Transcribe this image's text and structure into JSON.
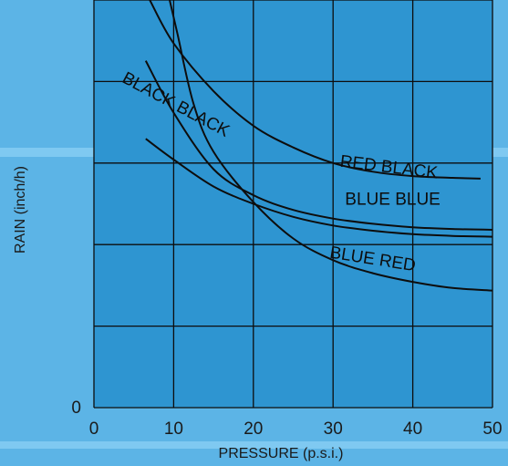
{
  "chart_data": {
    "type": "line",
    "xlabel": "PRESSURE (p.s.i.)",
    "ylabel": "RAIN (inch/h)",
    "xlim": [
      0,
      50
    ],
    "ylim": [
      0,
      4.7
    ],
    "x_ticks": [
      0,
      10,
      20,
      30,
      40,
      50
    ],
    "y_ticks": [
      0
    ],
    "grid": true,
    "series": [
      {
        "name": "RED BLACK",
        "points": [
          [
            7.0,
            4.7
          ],
          [
            10,
            4.2
          ],
          [
            15,
            3.65
          ],
          [
            20,
            3.25
          ],
          [
            25,
            3.0
          ],
          [
            30,
            2.82
          ],
          [
            35,
            2.72
          ],
          [
            40,
            2.67
          ],
          [
            45,
            2.65
          ],
          [
            48.5,
            2.64
          ]
        ]
      },
      {
        "name": "BLUE BLUE",
        "points": [
          [
            6.5,
            4.0
          ],
          [
            10,
            3.4
          ],
          [
            15,
            2.75
          ],
          [
            20,
            2.45
          ],
          [
            25,
            2.28
          ],
          [
            30,
            2.18
          ],
          [
            35,
            2.12
          ],
          [
            40,
            2.08
          ],
          [
            45,
            2.06
          ],
          [
            50,
            2.05
          ]
        ]
      },
      {
        "name": "BLACK BLACK",
        "points": [
          [
            6.5,
            3.1
          ],
          [
            10,
            2.86
          ],
          [
            15,
            2.55
          ],
          [
            20,
            2.35
          ],
          [
            25,
            2.2
          ],
          [
            30,
            2.1
          ],
          [
            35,
            2.04
          ],
          [
            40,
            2.0
          ],
          [
            45,
            1.98
          ],
          [
            50,
            1.97
          ]
        ]
      },
      {
        "name": "BLUE RED",
        "points": [
          [
            9.5,
            4.7
          ],
          [
            10.5,
            4.3
          ],
          [
            12.5,
            3.5
          ],
          [
            15,
            2.95
          ],
          [
            20,
            2.37
          ],
          [
            25,
            1.95
          ],
          [
            30,
            1.7
          ],
          [
            35,
            1.55
          ],
          [
            40,
            1.45
          ],
          [
            45,
            1.38
          ],
          [
            50,
            1.35
          ]
        ]
      }
    ],
    "curve_labels": [
      {
        "series": "RED BLACK",
        "text": "RED BLACK",
        "x": 30.8,
        "y": 2.78,
        "angle": 7
      },
      {
        "series": "BLUE BLUE",
        "text": "BLUE BLUE",
        "x": 31.5,
        "y": 2.34,
        "angle": 0
      },
      {
        "series": "BLACK BLACK",
        "text": "BLACK BLACK",
        "x": 3.4,
        "y": 3.76,
        "angle": 28
      },
      {
        "series": "BLUE RED",
        "text": "BLUE RED",
        "x": 29.5,
        "y": 1.73,
        "angle": 9
      }
    ],
    "colors": {
      "background": "#5cb4e6",
      "plot_area": "#2e95d1",
      "line": "#0d0d0d",
      "grid": "#0d0d0d",
      "band": "#8fd1f5"
    }
  }
}
